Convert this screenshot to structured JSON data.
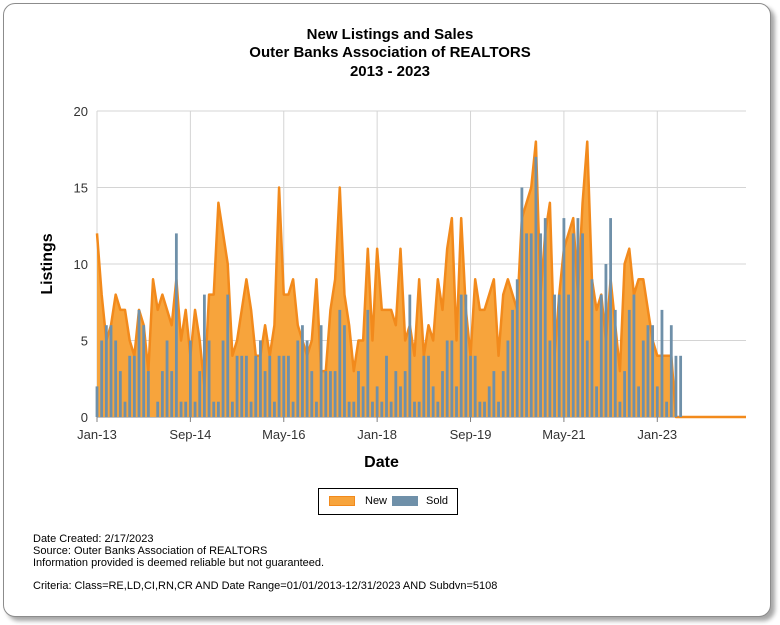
{
  "chart_data": {
    "type": "bar",
    "title": [
      "New Listings and Sales",
      "Outer Banks Association of REALTORS",
      "2013 - 2023"
    ],
    "xlabel": "Date",
    "ylabel": "Listings",
    "ylim": [
      0,
      20
    ],
    "yticks": [
      "0",
      "5",
      "10",
      "15",
      "20"
    ],
    "xticks": [
      "Jan-13",
      "Sep-14",
      "May-16",
      "Jan-18",
      "Sep-19",
      "May-21",
      "Jan-23"
    ],
    "grid": true,
    "legend": "bottom-center",
    "start_month": "2013-01",
    "series": [
      {
        "name": "New",
        "render": "area",
        "color": "#f7a43c",
        "line_color": "#f28a1c",
        "values": [
          12,
          8,
          5,
          6,
          8,
          7,
          7,
          5,
          4,
          7,
          6,
          3,
          9,
          7,
          8,
          7,
          6,
          9,
          5,
          7,
          4,
          7,
          5,
          2,
          8,
          8,
          14,
          12,
          10,
          4,
          5,
          7,
          9,
          7,
          4,
          4,
          6,
          4,
          6,
          15,
          8,
          8,
          9,
          6,
          5,
          4,
          5,
          9,
          3,
          3,
          7,
          9,
          15,
          8,
          6,
          3,
          5,
          5,
          11,
          5,
          11,
          7,
          7,
          7,
          6,
          11,
          5,
          6,
          4,
          9,
          4,
          6,
          5,
          9,
          7,
          11,
          13,
          5,
          13,
          7,
          4,
          9,
          7,
          7,
          8,
          9,
          4,
          8,
          9,
          8,
          7,
          13,
          14,
          15,
          18,
          8,
          12,
          14,
          4,
          8,
          11,
          12,
          13,
          8,
          14,
          18,
          9,
          7,
          8,
          5,
          9,
          6,
          3,
          10,
          11,
          8,
          9,
          9,
          7,
          5,
          4,
          4,
          4,
          4,
          0,
          0,
          0,
          0,
          0,
          0,
          0,
          0,
          0,
          0,
          0,
          0,
          0,
          0,
          0,
          0
        ]
      },
      {
        "name": "Sold",
        "render": "bar",
        "color": "#6f90a9",
        "values": [
          2,
          5,
          6,
          6,
          5,
          3,
          1,
          4,
          4,
          7,
          6,
          3,
          0,
          1,
          3,
          5,
          3,
          12,
          1,
          1,
          5,
          1,
          3,
          8,
          5,
          1,
          1,
          5,
          8,
          1,
          4,
          4,
          4,
          1,
          4,
          5,
          3,
          4,
          1,
          4,
          4,
          4,
          1,
          5,
          6,
          5,
          3,
          1,
          6,
          3,
          3,
          3,
          7,
          6,
          1,
          1,
          3,
          2,
          7,
          1,
          2,
          1,
          4,
          1,
          3,
          2,
          3,
          8,
          1,
          1,
          4,
          4,
          2,
          1,
          3,
          5,
          5,
          2,
          8,
          8,
          4,
          4,
          1,
          1,
          2,
          3,
          1,
          3,
          5,
          7,
          9,
          15,
          12,
          12,
          17,
          12,
          13,
          5,
          8,
          8,
          13,
          8,
          12,
          13,
          12,
          5,
          9,
          2,
          8,
          10,
          13,
          7,
          1,
          3,
          7,
          8,
          2,
          5,
          6,
          6,
          2,
          7,
          1,
          6,
          4,
          4,
          0,
          0,
          0,
          0,
          0,
          0,
          0,
          0,
          0,
          0,
          0,
          0,
          0,
          0
        ]
      }
    ]
  },
  "footer": {
    "date_created": "Date Created: 2/17/2023",
    "source": "Source: Outer Banks Association of REALTORS",
    "disclaimer": "Information provided is deemed reliable but not guaranteed.",
    "criteria": "Criteria: Class=RE,LD,CI,RN,CR AND Date Range=01/01/2013-12/31/2023 AND Subdvn=5108"
  }
}
